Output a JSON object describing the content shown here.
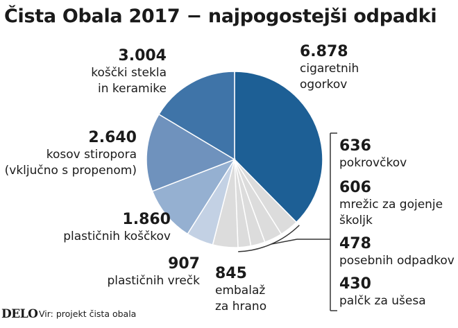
{
  "title": "Čista Obala 2017 − najpogostejši odpadki",
  "logo": "DELO",
  "source": "Vir: projekt čista obala",
  "colors": {
    "cigarette": "#1d5f95",
    "glass": "#3f74a8",
    "styrofoam": "#6f92bd",
    "plastic_pieces": "#95b0d1",
    "plastic_bags": "#c3d1e4",
    "packaging": "#dcdcdc",
    "bracket": "#333333"
  },
  "chart_data": {
    "type": "pie",
    "title": "Čista Obala 2017 − najpogostejši odpadki",
    "slices": [
      {
        "key": "cigarette",
        "value": 6878,
        "value_label": "6.878",
        "label_lines": [
          "cigaretnih",
          "ogorkov"
        ]
      },
      {
        "key": "caps",
        "value": 636,
        "value_label": "636",
        "label_lines": [
          "pokrovčkov"
        ]
      },
      {
        "key": "nets",
        "value": 606,
        "value_label": "606",
        "label_lines": [
          "mrežic za gojenje",
          "školjk"
        ]
      },
      {
        "key": "special",
        "value": 478,
        "value_label": "478",
        "label_lines": [
          "posebnih odpadkov"
        ]
      },
      {
        "key": "swabs",
        "value": 430,
        "value_label": "430",
        "label_lines": [
          "palčk za ušesa"
        ]
      },
      {
        "key": "packaging",
        "value": 845,
        "value_label": "845",
        "label_lines": [
          "embalaž",
          "za hrano"
        ]
      },
      {
        "key": "plastic_bags",
        "value": 907,
        "value_label": "907",
        "label_lines": [
          "plastičnih vrečk"
        ]
      },
      {
        "key": "plastic_pieces",
        "value": 1860,
        "value_label": "1.860",
        "label_lines": [
          "plastičnih koščkov"
        ]
      },
      {
        "key": "styrofoam",
        "value": 2640,
        "value_label": "2.640",
        "label_lines": [
          "kosov stiropora",
          "(vključno s propenom)"
        ]
      },
      {
        "key": "glass",
        "value": 3004,
        "value_label": "3.004",
        "label_lines": [
          "koščki stekla",
          "in keramike"
        ]
      }
    ]
  }
}
